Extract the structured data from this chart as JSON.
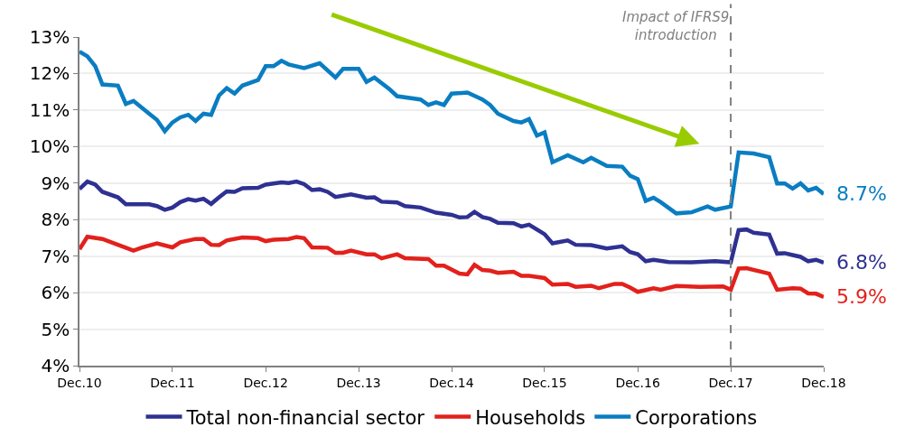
{
  "chart_data": {
    "type": "line",
    "series": [
      {
        "name": "Total non-financial sector",
        "color": "#2e3192",
        "x": [
          "2010-12",
          "2011-01",
          "2011-02",
          "2011-03",
          "2011-05",
          "2011-06",
          "2011-09",
          "2011-10",
          "2011-11",
          "2011-12",
          "2012-01",
          "2012-02",
          "2012-03",
          "2012-04",
          "2012-05",
          "2012-06",
          "2012-07",
          "2012-08",
          "2012-09",
          "2012-11",
          "2012-12",
          "2013-02",
          "2013-03",
          "2013-04",
          "2013-05",
          "2013-06",
          "2013-07",
          "2013-08",
          "2013-09",
          "2013-11",
          "2014-01",
          "2014-02",
          "2014-03",
          "2014-05",
          "2014-06",
          "2014-08",
          "2014-10",
          "2014-12",
          "2015-01",
          "2015-02",
          "2015-03",
          "2015-04",
          "2015-05",
          "2015-06",
          "2015-08",
          "2015-09",
          "2015-10",
          "2015-12",
          "2016-01",
          "2016-03",
          "2016-04",
          "2016-06",
          "2016-08",
          "2016-10",
          "2016-11",
          "2016-12",
          "2017-01",
          "2017-02",
          "2017-04",
          "2017-07",
          "2017-10",
          "2017-12",
          "2018-01",
          "2018-02",
          "2018-03",
          "2018-05",
          "2018-06",
          "2018-07",
          "2018-08",
          "2018-09",
          "2018-10",
          "2018-11",
          "2018-12"
        ],
        "values": [
          8.84,
          9.04,
          8.96,
          8.76,
          8.61,
          8.42,
          8.42,
          8.37,
          8.27,
          8.33,
          8.48,
          8.56,
          8.52,
          8.57,
          8.43,
          8.61,
          8.77,
          8.76,
          8.86,
          8.87,
          8.96,
          9.02,
          9.0,
          9.04,
          8.97,
          8.81,
          8.83,
          8.76,
          8.62,
          8.69,
          8.6,
          8.61,
          8.49,
          8.47,
          8.37,
          8.33,
          8.19,
          8.13,
          8.06,
          8.07,
          8.21,
          8.07,
          8.02,
          7.91,
          7.9,
          7.81,
          7.86,
          7.6,
          7.35,
          7.43,
          7.31,
          7.3,
          7.21,
          7.27,
          7.11,
          7.05,
          6.86,
          6.9,
          6.84,
          6.83,
          6.86,
          6.83,
          7.71,
          7.73,
          7.64,
          7.59,
          7.07,
          7.08,
          7.03,
          6.98,
          6.86,
          6.9,
          6.82
        ]
      },
      {
        "name": "Households",
        "color": "#e2211c",
        "x": [
          "2010-12",
          "2011-01",
          "2011-03",
          "2011-05",
          "2011-06",
          "2011-07",
          "2011-08",
          "2011-10",
          "2011-12",
          "2012-01",
          "2012-03",
          "2012-04",
          "2012-05",
          "2012-06",
          "2012-07",
          "2012-09",
          "2012-11",
          "2012-12",
          "2013-01",
          "2013-03",
          "2013-04",
          "2013-05",
          "2013-06",
          "2013-08",
          "2013-09",
          "2013-10",
          "2013-11",
          "2014-01",
          "2014-02",
          "2014-03",
          "2014-05",
          "2014-06",
          "2014-09",
          "2014-10",
          "2014-11",
          "2015-01",
          "2015-02",
          "2015-03",
          "2015-04",
          "2015-05",
          "2015-06",
          "2015-08",
          "2015-09",
          "2015-10",
          "2015-12",
          "2016-01",
          "2016-03",
          "2016-04",
          "2016-06",
          "2016-07",
          "2016-09",
          "2016-10",
          "2016-11",
          "2016-12",
          "2017-02",
          "2017-03",
          "2017-05",
          "2017-08",
          "2017-11",
          "2017-12",
          "2018-01",
          "2018-02",
          "2018-05",
          "2018-06",
          "2018-08",
          "2018-09",
          "2018-10",
          "2018-11",
          "2018-12"
        ],
        "values": [
          7.19,
          7.53,
          7.47,
          7.31,
          7.23,
          7.15,
          7.23,
          7.35,
          7.24,
          7.38,
          7.47,
          7.47,
          7.31,
          7.3,
          7.43,
          7.51,
          7.49,
          7.41,
          7.45,
          7.47,
          7.52,
          7.49,
          7.24,
          7.23,
          7.09,
          7.09,
          7.15,
          7.05,
          7.05,
          6.94,
          7.05,
          6.94,
          6.92,
          6.74,
          6.74,
          6.52,
          6.5,
          6.76,
          6.62,
          6.6,
          6.54,
          6.57,
          6.46,
          6.46,
          6.4,
          6.22,
          6.24,
          6.16,
          6.19,
          6.12,
          6.24,
          6.24,
          6.14,
          6.02,
          6.12,
          6.08,
          6.18,
          6.16,
          6.17,
          6.08,
          6.66,
          6.67,
          6.52,
          6.08,
          6.12,
          6.11,
          5.98,
          5.97,
          5.88
        ]
      },
      {
        "name": "Corporations",
        "color": "#0a7dc2",
        "x": [
          "2010-12",
          "2011-01",
          "2011-02",
          "2011-03",
          "2011-05",
          "2011-06",
          "2011-07",
          "2011-09",
          "2011-10",
          "2011-11",
          "2011-12",
          "2012-01",
          "2012-02",
          "2012-03",
          "2012-04",
          "2012-05",
          "2012-06",
          "2012-07",
          "2012-08",
          "2012-09",
          "2012-11",
          "2012-12",
          "2013-01",
          "2013-02",
          "2013-03",
          "2013-05",
          "2013-07",
          "2013-09",
          "2013-10",
          "2013-12",
          "2014-01",
          "2014-02",
          "2014-04",
          "2014-05",
          "2014-08",
          "2014-09",
          "2014-10",
          "2014-11",
          "2014-12",
          "2015-02",
          "2015-04",
          "2015-05",
          "2015-06",
          "2015-08",
          "2015-09",
          "2015-10",
          "2015-11",
          "2015-12",
          "2016-01",
          "2016-03",
          "2016-05",
          "2016-06",
          "2016-08",
          "2016-10",
          "2016-11",
          "2016-12",
          "2017-01",
          "2017-02",
          "2017-03",
          "2017-05",
          "2017-07",
          "2017-09",
          "2017-10",
          "2017-12",
          "2018-01",
          "2018-03",
          "2018-05",
          "2018-06",
          "2018-07",
          "2018-08",
          "2018-09",
          "2018-10",
          "2018-11",
          "2018-12"
        ],
        "values": [
          12.6,
          12.47,
          12.2,
          11.7,
          11.67,
          11.17,
          11.25,
          10.9,
          10.73,
          10.42,
          10.66,
          10.8,
          10.87,
          10.7,
          10.9,
          10.87,
          11.4,
          11.6,
          11.45,
          11.67,
          11.82,
          12.2,
          12.2,
          12.35,
          12.25,
          12.15,
          12.28,
          11.89,
          12.13,
          12.13,
          11.77,
          11.89,
          11.57,
          11.38,
          11.29,
          11.14,
          11.21,
          11.14,
          11.45,
          11.48,
          11.29,
          11.14,
          10.9,
          10.7,
          10.66,
          10.75,
          10.3,
          10.39,
          9.57,
          9.76,
          9.57,
          9.69,
          9.47,
          9.45,
          9.2,
          9.11,
          8.51,
          8.6,
          8.48,
          8.17,
          8.2,
          8.36,
          8.27,
          8.36,
          9.84,
          9.81,
          9.71,
          8.99,
          8.99,
          8.85,
          8.99,
          8.8,
          8.87,
          8.7
        ]
      }
    ],
    "xlim": [
      "2010-12",
      "2018-12"
    ],
    "xticks": [
      {
        "value": "2010-12",
        "label": "Dec.10"
      },
      {
        "value": "2011-12",
        "label": "Dec.11"
      },
      {
        "value": "2012-12",
        "label": "Dec.12"
      },
      {
        "value": "2013-12",
        "label": "Dec.13"
      },
      {
        "value": "2014-12",
        "label": "Dec.14"
      },
      {
        "value": "2015-12",
        "label": "Dec.15"
      },
      {
        "value": "2016-12",
        "label": "Dec.16"
      },
      {
        "value": "2017-12",
        "label": "Dec.17"
      },
      {
        "value": "2018-12",
        "label": "Dec.18"
      }
    ],
    "ylim": [
      4,
      13
    ],
    "yticks": [
      {
        "value": 4,
        "label": "4%"
      },
      {
        "value": 5,
        "label": "5%"
      },
      {
        "value": 6,
        "label": "6%"
      },
      {
        "value": 7,
        "label": "7%"
      },
      {
        "value": 8,
        "label": "8%"
      },
      {
        "value": 9,
        "label": "9%"
      },
      {
        "value": 10,
        "label": "10%"
      },
      {
        "value": 11,
        "label": "11%"
      },
      {
        "value": 12,
        "label": "12%"
      },
      {
        "value": 13,
        "label": "13%"
      }
    ],
    "grid": "y",
    "legend": "bottom",
    "marker": "none",
    "line_style": "solid",
    "ref_lines": [
      {
        "axis": "x",
        "value": "2017-12",
        "label": "Impact of IFRS9\nintroduction",
        "color": "#808080",
        "line_style": "dashed"
      }
    ],
    "annotations": [
      {
        "text": "8.7%",
        "x": "2018-12",
        "y": 8.7
      },
      {
        "text": "6.8%",
        "x": "2018-12",
        "y": 6.82
      },
      {
        "text": "5.9%",
        "x": "2018-12",
        "y": 5.88
      }
    ]
  }
}
